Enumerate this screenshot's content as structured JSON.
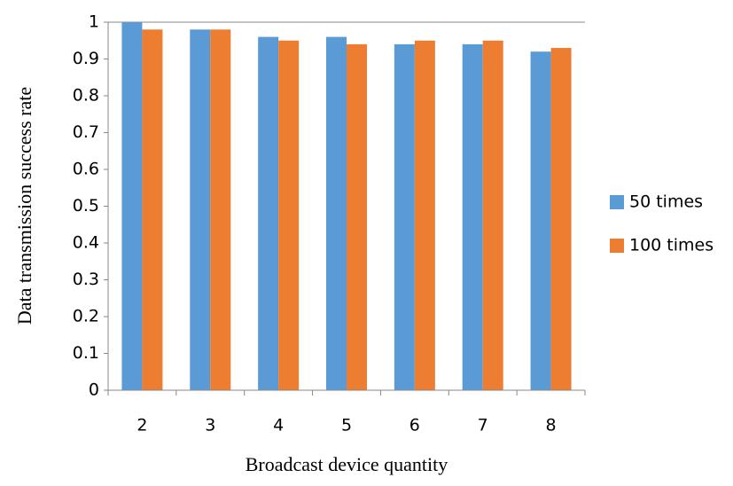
{
  "chart_data": {
    "type": "bar",
    "x_label": "Broadcast device quantity",
    "y_label": "Data transmission  success rate",
    "categories": [
      "2",
      "3",
      "4",
      "5",
      "6",
      "7",
      "8"
    ],
    "series": [
      {
        "name": "50 times",
        "color": "#5b9bd5",
        "values": [
          1,
          0.98,
          0.96,
          0.96,
          0.94,
          0.94,
          0.92
        ]
      },
      {
        "name": "100 times",
        "color": "#ed7d31",
        "values": [
          0.98,
          0.98,
          0.95,
          0.94,
          0.95,
          0.95,
          0.93
        ]
      }
    ],
    "ylim": [
      0,
      1
    ],
    "yticks": [
      0,
      0.1,
      0.2,
      0.3,
      0.4,
      0.5,
      0.6,
      0.7,
      0.8,
      0.9,
      1
    ],
    "grid": false,
    "legend": "right"
  }
}
